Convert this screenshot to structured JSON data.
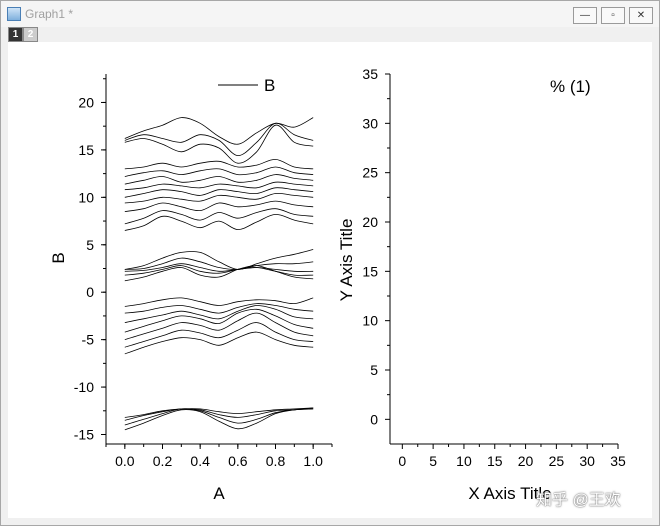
{
  "window": {
    "title": "Graph1 *",
    "controls": {
      "minimize": "—",
      "restore": "▫",
      "close": "✕"
    }
  },
  "layer_tabs": [
    "1",
    "2"
  ],
  "watermark": "知乎 @王欢",
  "chart_data": [
    {
      "type": "line",
      "xlabel": "A",
      "ylabel": "B",
      "xlim": [
        -0.1,
        1.1
      ],
      "ylim": [
        -16,
        23
      ],
      "xticks": [
        "0.0",
        "0.2",
        "0.4",
        "0.6",
        "0.8",
        "1.0"
      ],
      "yticks": [
        "-15",
        "-10",
        "-5",
        "0",
        "5",
        "10",
        "15",
        "20"
      ],
      "legend": {
        "position": "top-right",
        "entries": [
          "B"
        ]
      },
      "grid": false,
      "x": [
        0.0,
        0.1,
        0.2,
        0.3,
        0.4,
        0.5,
        0.6,
        0.7,
        0.8,
        0.9,
        1.0
      ],
      "series": [
        {
          "values": [
            -14.5,
            -13.8,
            -13.0,
            -12.4,
            -12.6,
            -13.6,
            -14.4,
            -13.8,
            -12.8,
            -12.4,
            -12.3
          ]
        },
        {
          "values": [
            -14.0,
            -13.4,
            -12.8,
            -12.3,
            -12.5,
            -13.2,
            -13.8,
            -13.4,
            -12.7,
            -12.4,
            -12.3
          ]
        },
        {
          "values": [
            -13.5,
            -13.0,
            -12.6,
            -12.3,
            -12.4,
            -12.9,
            -13.2,
            -12.9,
            -12.5,
            -12.4,
            -12.2
          ]
        },
        {
          "values": [
            -13.2,
            -12.9,
            -12.5,
            -12.3,
            -12.3,
            -12.6,
            -12.8,
            -12.6,
            -12.4,
            -12.3,
            -12.2
          ]
        },
        {
          "values": [
            -6.5,
            -5.8,
            -5.2,
            -4.8,
            -5.0,
            -5.6,
            -4.8,
            -4.2,
            -5.0,
            -5.6,
            -5.8
          ]
        },
        {
          "values": [
            -5.8,
            -5.2,
            -4.6,
            -4.0,
            -4.3,
            -4.8,
            -4.0,
            -3.2,
            -4.2,
            -5.0,
            -5.2
          ]
        },
        {
          "values": [
            -5.0,
            -4.4,
            -3.8,
            -3.2,
            -3.5,
            -4.0,
            -3.0,
            -2.2,
            -3.2,
            -4.2,
            -4.6
          ]
        },
        {
          "values": [
            -4.2,
            -3.6,
            -3.0,
            -2.5,
            -2.8,
            -3.3,
            -2.2,
            -1.8,
            -2.5,
            -3.4,
            -3.8
          ]
        },
        {
          "values": [
            -3.2,
            -2.8,
            -2.4,
            -2.0,
            -2.4,
            -2.8,
            -2.0,
            -1.4,
            -1.8,
            -2.6,
            -2.8
          ]
        },
        {
          "values": [
            -2.2,
            -2.0,
            -1.6,
            -1.4,
            -1.8,
            -2.2,
            -1.6,
            -1.2,
            -1.4,
            -1.8,
            -2.0
          ]
        },
        {
          "values": [
            -1.5,
            -1.2,
            -0.8,
            -0.6,
            -1.0,
            -1.4,
            -1.0,
            -0.8,
            -0.9,
            -1.2,
            -0.6
          ]
        },
        {
          "values": [
            1.2,
            1.6,
            2.2,
            2.6,
            1.8,
            1.6,
            2.4,
            2.8,
            2.2,
            1.6,
            1.4
          ]
        },
        {
          "values": [
            1.8,
            2.0,
            2.4,
            2.8,
            2.2,
            2.0,
            2.4,
            2.6,
            2.2,
            1.8,
            1.8
          ]
        },
        {
          "values": [
            2.2,
            2.3,
            2.6,
            3.0,
            2.6,
            2.2,
            2.4,
            2.6,
            2.4,
            2.2,
            2.2
          ]
        },
        {
          "values": [
            2.4,
            2.5,
            3.0,
            3.6,
            3.2,
            2.6,
            2.4,
            2.8,
            3.0,
            3.0,
            3.2
          ]
        },
        {
          "values": [
            2.4,
            2.8,
            3.6,
            4.2,
            4.2,
            3.2,
            2.4,
            3.0,
            3.6,
            4.0,
            4.5
          ]
        },
        {
          "values": [
            6.5,
            7.0,
            8.0,
            7.5,
            6.8,
            7.5,
            6.6,
            7.4,
            8.2,
            7.6,
            7.2
          ]
        },
        {
          "values": [
            7.2,
            7.8,
            8.6,
            8.2,
            7.6,
            8.4,
            7.8,
            8.4,
            8.8,
            8.2,
            8.0
          ]
        },
        {
          "values": [
            8.5,
            8.8,
            9.4,
            9.0,
            8.6,
            9.4,
            9.0,
            9.2,
            9.6,
            9.2,
            9.0
          ]
        },
        {
          "values": [
            9.4,
            9.6,
            10.0,
            9.8,
            9.6,
            10.2,
            10.0,
            9.8,
            10.4,
            10.2,
            10.0
          ]
        },
        {
          "values": [
            10.0,
            10.4,
            10.8,
            10.6,
            10.2,
            10.8,
            10.6,
            10.4,
            11.0,
            10.8,
            10.6
          ]
        },
        {
          "values": [
            10.8,
            11.0,
            11.4,
            11.2,
            11.0,
            11.4,
            11.2,
            11.0,
            11.6,
            11.4,
            11.2
          ]
        },
        {
          "values": [
            11.4,
            11.8,
            12.2,
            11.6,
            11.8,
            12.2,
            11.6,
            11.8,
            12.4,
            12.0,
            11.8
          ]
        },
        {
          "values": [
            12.2,
            12.6,
            12.8,
            12.4,
            12.8,
            13.0,
            12.4,
            12.6,
            13.2,
            12.6,
            12.4
          ]
        },
        {
          "values": [
            13.0,
            13.2,
            13.6,
            13.2,
            13.6,
            13.8,
            13.2,
            13.4,
            14.0,
            13.2,
            13.0
          ]
        },
        {
          "values": [
            15.8,
            16.2,
            15.6,
            14.8,
            15.6,
            15.2,
            13.6,
            14.8,
            17.6,
            15.8,
            15.4
          ]
        },
        {
          "values": [
            16.0,
            16.6,
            16.2,
            15.8,
            16.6,
            16.0,
            14.4,
            15.8,
            17.8,
            16.6,
            16.0
          ]
        },
        {
          "values": [
            16.2,
            17.0,
            17.6,
            18.4,
            17.8,
            16.4,
            15.6,
            16.8,
            17.8,
            17.4,
            18.4
          ]
        }
      ]
    },
    {
      "type": "line",
      "title": "% (1)",
      "xlabel": "X Axis Title",
      "ylabel": "Y Axis Title",
      "xlim": [
        -2,
        35
      ],
      "ylim": [
        -2.5,
        35
      ],
      "xticks": [
        "0",
        "5",
        "10",
        "15",
        "20",
        "25",
        "30",
        "35"
      ],
      "yticks": [
        "0",
        "5",
        "10",
        "15",
        "20",
        "25",
        "30",
        "35"
      ],
      "grid": false,
      "series": []
    }
  ]
}
